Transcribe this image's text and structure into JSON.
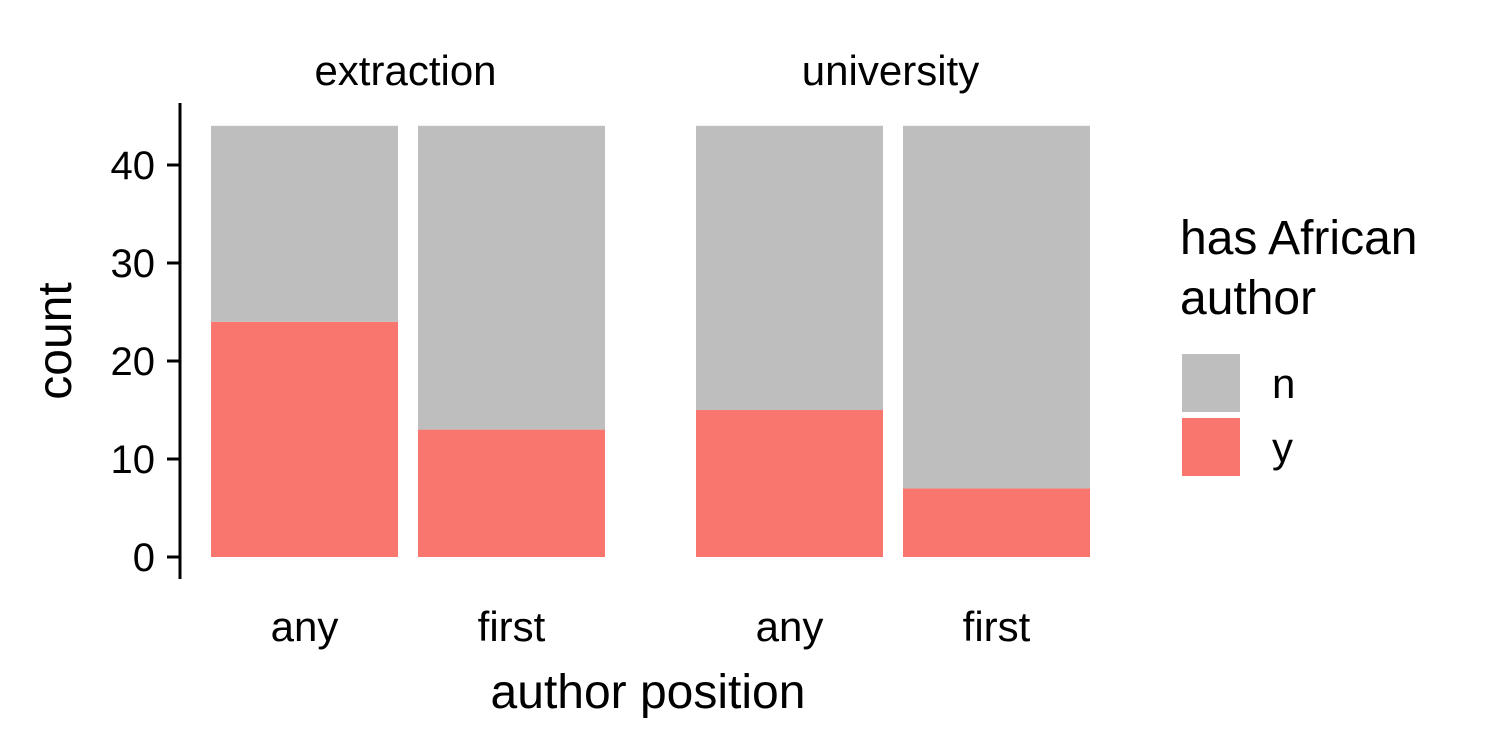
{
  "chart_data": {
    "type": "bar",
    "stacked": true,
    "facets": [
      "extraction",
      "university"
    ],
    "categories": [
      "any",
      "first"
    ],
    "xlabel": "author position",
    "ylabel": "count",
    "ylim": [
      0,
      44
    ],
    "yticks": [
      0,
      10,
      20,
      30,
      40
    ],
    "legend": {
      "title_lines": [
        "has African",
        "author"
      ],
      "placement": "right"
    },
    "series": [
      {
        "name": "n",
        "color": "#bebebe",
        "values": {
          "extraction": [
            20,
            31
          ],
          "university": [
            29,
            37
          ]
        }
      },
      {
        "name": "y",
        "color": "#f8766d",
        "values": {
          "extraction": [
            24,
            13
          ],
          "university": [
            15,
            7
          ]
        }
      }
    ],
    "grid": false
  }
}
